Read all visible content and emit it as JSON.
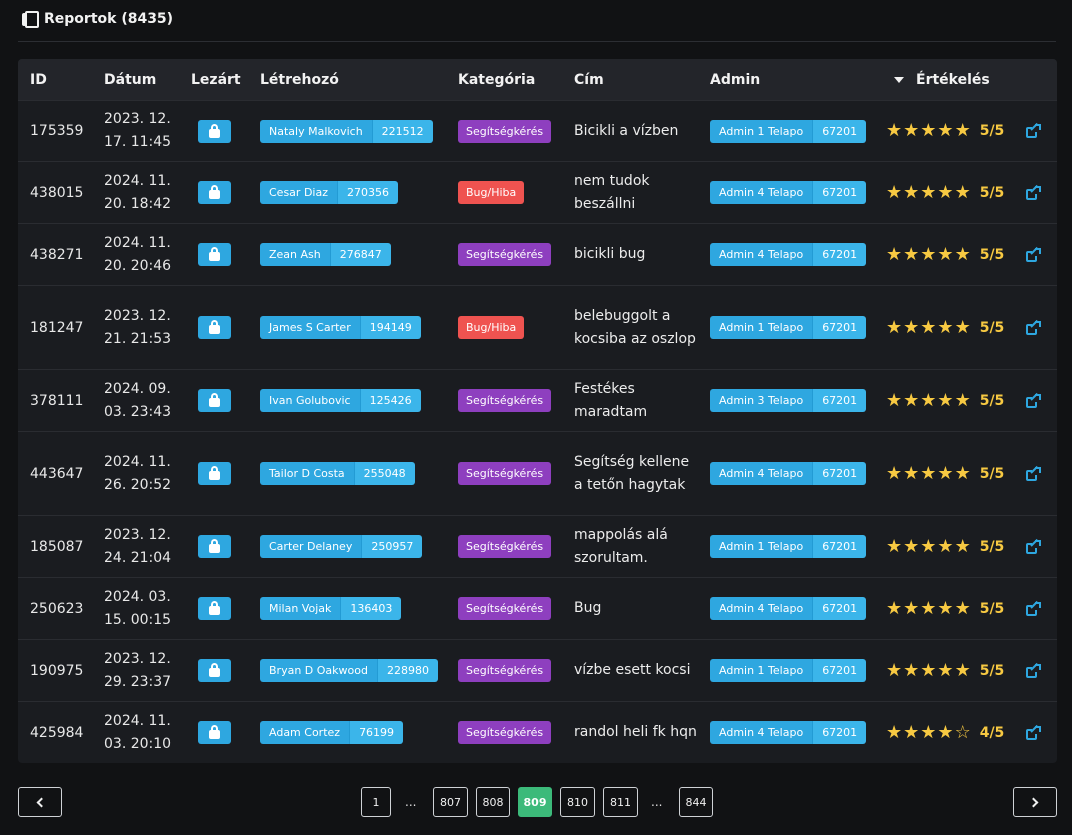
{
  "header": {
    "title": "Reportok (8435)"
  },
  "columns": {
    "id": "ID",
    "date": "Dátum",
    "closed": "Lezárt",
    "creator": "Létrehozó",
    "category": "Kategória",
    "title": "Cím",
    "admin": "Admin",
    "rating": "Értékelés"
  },
  "rows": [
    {
      "id": "175359",
      "date": "2023. 12. 17. 11:45",
      "creator_name": "Nataly Malkovich",
      "creator_id": "221512",
      "category": "Segítségkérés",
      "category_type": "help",
      "title": "Bicikli a vízben",
      "admin_name": "Admin 1 Telapo",
      "admin_id": "67201",
      "stars": 5,
      "score": "5/5"
    },
    {
      "id": "438015",
      "date": "2024. 11. 20. 18:42",
      "creator_name": "Cesar Diaz",
      "creator_id": "270356",
      "category": "Bug/Hiba",
      "category_type": "bug",
      "title": "nem tudok beszállni",
      "admin_name": "Admin 4 Telapo",
      "admin_id": "67201",
      "stars": 5,
      "score": "5/5"
    },
    {
      "id": "438271",
      "date": "2024. 11. 20. 20:46",
      "creator_name": "Zean Ash",
      "creator_id": "276847",
      "category": "Segítségkérés",
      "category_type": "help",
      "title": "bicikli bug",
      "admin_name": "Admin 4 Telapo",
      "admin_id": "67201",
      "stars": 5,
      "score": "5/5"
    },
    {
      "id": "181247",
      "date": "2023. 12. 21. 21:53",
      "creator_name": "James S Carter",
      "creator_id": "194149",
      "category": "Bug/Hiba",
      "category_type": "bug",
      "title": "belebuggolt a kocsiba az oszlop",
      "admin_name": "Admin 1 Telapo",
      "admin_id": "67201",
      "stars": 5,
      "score": "5/5"
    },
    {
      "id": "378111",
      "date": "2024. 09. 03. 23:43",
      "creator_name": "Ivan Golubovic",
      "creator_id": "125426",
      "category": "Segítségkérés",
      "category_type": "help",
      "title": "Festékes maradtam",
      "admin_name": "Admin 3 Telapo",
      "admin_id": "67201",
      "stars": 5,
      "score": "5/5"
    },
    {
      "id": "443647",
      "date": "2024. 11. 26. 20:52",
      "creator_name": "Tailor D Costa",
      "creator_id": "255048",
      "category": "Segítségkérés",
      "category_type": "help",
      "title": "Segítség kellene a tetőn hagytak",
      "admin_name": "Admin 4 Telapo",
      "admin_id": "67201",
      "stars": 5,
      "score": "5/5"
    },
    {
      "id": "185087",
      "date": "2023. 12. 24. 21:04",
      "creator_name": "Carter Delaney",
      "creator_id": "250957",
      "category": "Segítségkérés",
      "category_type": "help",
      "title": "mappolás alá szorultam.",
      "admin_name": "Admin 1 Telapo",
      "admin_id": "67201",
      "stars": 5,
      "score": "5/5"
    },
    {
      "id": "250623",
      "date": "2024. 03. 15. 00:15",
      "creator_name": "Milan Vojak",
      "creator_id": "136403",
      "category": "Segítségkérés",
      "category_type": "help",
      "title": "Bug",
      "admin_name": "Admin 4 Telapo",
      "admin_id": "67201",
      "stars": 5,
      "score": "5/5"
    },
    {
      "id": "190975",
      "date": "2023. 12. 29. 23:37",
      "creator_name": "Bryan D Oakwood",
      "creator_id": "228980",
      "category": "Segítségkérés",
      "category_type": "help",
      "title": "vízbe esett kocsi",
      "admin_name": "Admin 1 Telapo",
      "admin_id": "67201",
      "stars": 5,
      "score": "5/5"
    },
    {
      "id": "425984",
      "date": "2024. 11. 03. 20:10",
      "creator_name": "Adam Cortez",
      "creator_id": "76199",
      "category": "Segítségkérés",
      "category_type": "help",
      "title": "randol heli fk hqn",
      "admin_name": "Admin 4 Telapo",
      "admin_id": "67201",
      "stars": 4,
      "score": "4/5"
    }
  ],
  "pagination": {
    "pages": [
      "1",
      "...",
      "807",
      "808",
      "809",
      "810",
      "811",
      "...",
      "844"
    ],
    "current": "809"
  },
  "colors": {
    "accent": "#2ea7e0",
    "help": "#8e3fbf",
    "bug": "#ef5350",
    "star": "#f7c942",
    "active_page": "#3cba7a"
  }
}
